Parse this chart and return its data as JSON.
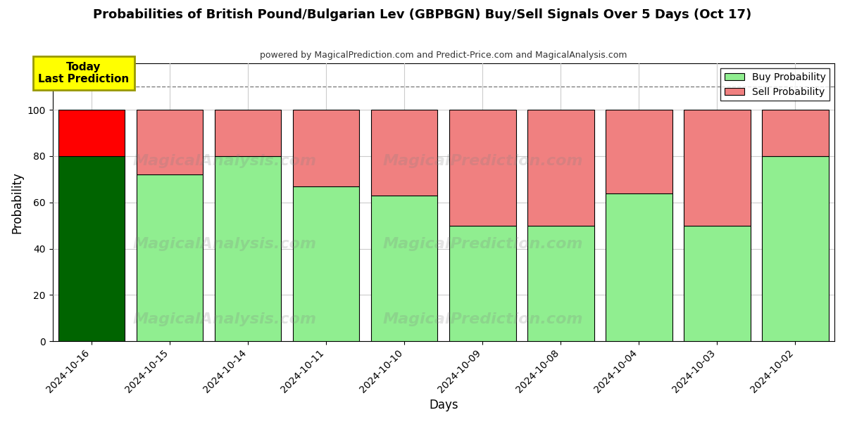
{
  "title": "Probabilities of British Pound/Bulgarian Lev (GBPBGN) Buy/Sell Signals Over 5 Days (Oct 17)",
  "subtitle": "powered by MagicalPrediction.com and Predict-Price.com and MagicalAnalysis.com",
  "xlabel": "Days",
  "ylabel": "Probability",
  "categories": [
    "2024-10-16",
    "2024-10-15",
    "2024-10-14",
    "2024-10-11",
    "2024-10-10",
    "2024-10-09",
    "2024-10-08",
    "2024-10-04",
    "2024-10-03",
    "2024-10-02"
  ],
  "buy_values": [
    80,
    72,
    80,
    67,
    63,
    50,
    50,
    64,
    50,
    80
  ],
  "sell_values": [
    20,
    28,
    20,
    33,
    37,
    50,
    50,
    36,
    50,
    20
  ],
  "buy_colors": [
    "#006400",
    "#90EE90",
    "#90EE90",
    "#90EE90",
    "#90EE90",
    "#90EE90",
    "#90EE90",
    "#90EE90",
    "#90EE90",
    "#90EE90"
  ],
  "sell_colors": [
    "#FF0000",
    "#F08080",
    "#F08080",
    "#F08080",
    "#F08080",
    "#F08080",
    "#F08080",
    "#F08080",
    "#F08080",
    "#F08080"
  ],
  "ylim": [
    0,
    120
  ],
  "yticks": [
    0,
    20,
    40,
    60,
    80,
    100
  ],
  "dashed_line_y": 110,
  "legend_buy_color": "#90EE90",
  "legend_sell_color": "#F08080",
  "today_label": "Today\nLast Prediction",
  "today_box_color": "yellow",
  "background_color": "#ffffff",
  "grid_color": "#cccccc",
  "bar_edge_color": "#000000",
  "bar_width": 0.85
}
